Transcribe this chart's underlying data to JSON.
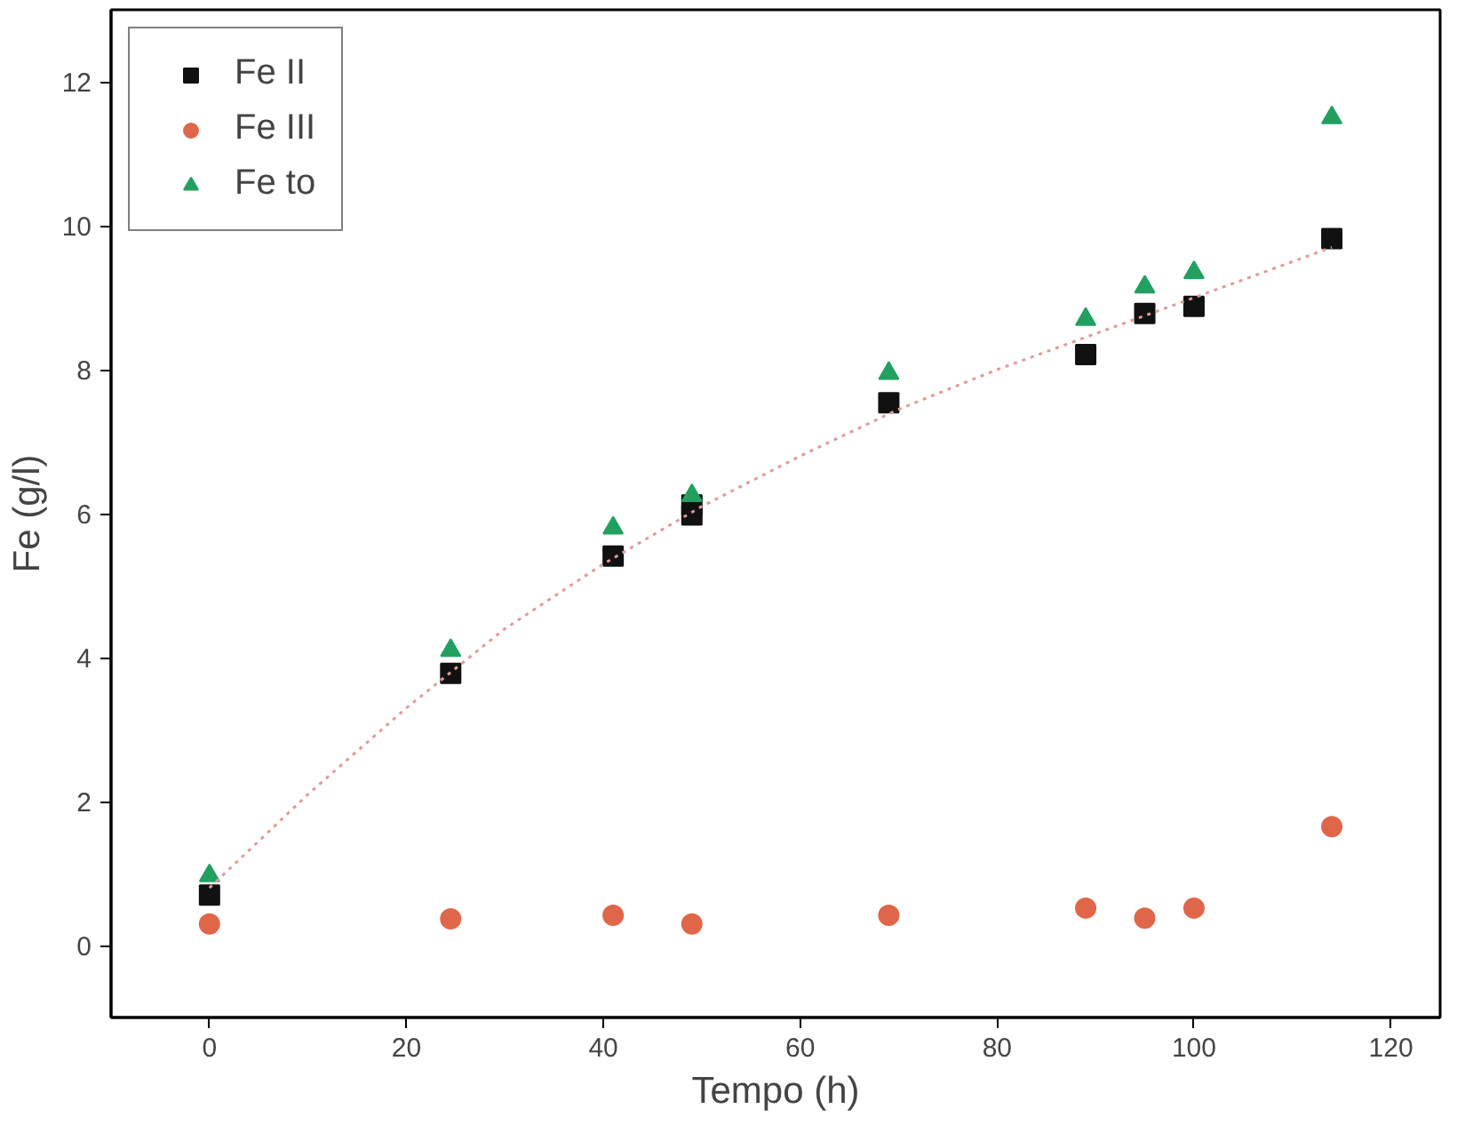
{
  "chart_data": {
    "type": "scatter",
    "xlabel": "Tempo (h)",
    "ylabel": "Fe (g/l)",
    "xlim": [
      -10,
      125
    ],
    "ylim": [
      -1,
      13
    ],
    "xticks": [
      0,
      20,
      40,
      60,
      80,
      100,
      120
    ],
    "yticks": [
      0,
      2,
      4,
      6,
      8,
      10,
      12
    ],
    "grid": false,
    "legend": "top left",
    "series": [
      {
        "name": "Fe II",
        "color": "#111111",
        "marker": "square",
        "x": [
          0,
          24.5,
          41,
          49,
          49,
          69,
          89,
          95,
          100,
          114
        ],
        "values": [
          0.7,
          3.78,
          5.41,
          5.98,
          6.12,
          7.54,
          8.21,
          8.78,
          8.88,
          9.82
        ]
      },
      {
        "name": "Fe III",
        "color": "#e0664a",
        "marker": "circle",
        "x": [
          0,
          24.5,
          41,
          49,
          69,
          89,
          95,
          100,
          114
        ],
        "values": [
          0.3,
          0.37,
          0.42,
          0.3,
          0.42,
          0.52,
          0.38,
          0.52,
          1.65
        ]
      },
      {
        "name": "Fe to",
        "color": "#22a060",
        "marker": "triangle",
        "x": [
          0,
          24.5,
          41,
          49,
          69,
          89,
          95,
          100,
          114
        ],
        "values": [
          0.97,
          4.1,
          5.8,
          6.25,
          7.95,
          8.7,
          9.15,
          9.35,
          11.5
        ]
      },
      {
        "type": "line",
        "color": "#e09a9a",
        "line_style": "dotted",
        "marker": "none",
        "x": [
          0,
          10,
          20,
          30,
          40,
          50,
          60,
          70,
          80,
          90,
          100,
          114
        ],
        "values": [
          0.8,
          2.1,
          3.3,
          4.4,
          5.3,
          6.1,
          6.8,
          7.45,
          8.0,
          8.5,
          9.0,
          9.7
        ]
      }
    ]
  }
}
